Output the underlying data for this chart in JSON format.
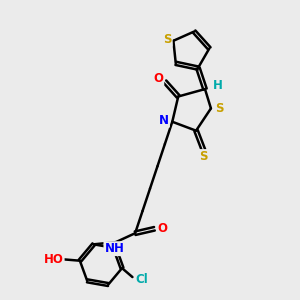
{
  "bg_color": "#ebebeb",
  "bond_color": "#000000",
  "bond_width": 1.8,
  "atom_colors": {
    "S": "#c8a000",
    "N": "#0000ff",
    "O": "#ff0000",
    "Cl": "#00aaaa",
    "H": "#00aaaa",
    "C": "#000000"
  },
  "font_size": 8.5,
  "fig_width": 3.0,
  "fig_height": 3.0,
  "dpi": 100
}
